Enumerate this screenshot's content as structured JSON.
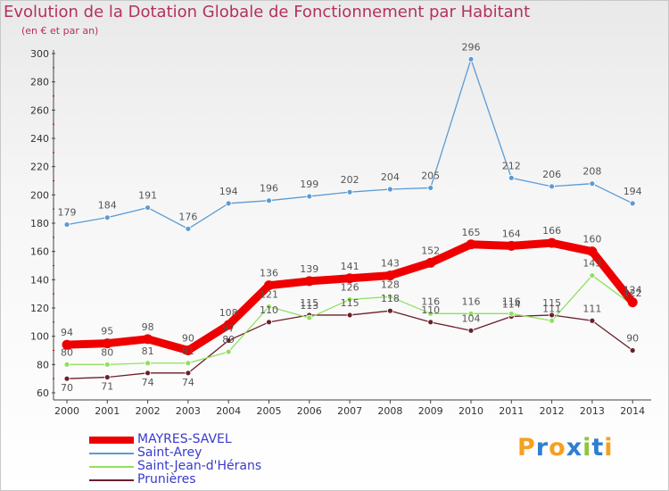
{
  "chart_data": {
    "type": "line",
    "title": "Evolution de la Dotation Globale de Fonctionnement par Habitant",
    "subtitle": "(en € et par an)",
    "xlabel": "",
    "ylabel": "",
    "x": [
      "2000",
      "2001",
      "2002",
      "2003",
      "2004",
      "2005",
      "2006",
      "2007",
      "2008",
      "2009",
      "2010",
      "2011",
      "2012",
      "2013",
      "2014"
    ],
    "ylim": [
      60,
      300
    ],
    "yticks": [
      60,
      80,
      100,
      120,
      140,
      160,
      180,
      200,
      220,
      240,
      260,
      280,
      300
    ],
    "grid": false,
    "legend_position": "bottom-left",
    "series": [
      {
        "name": "MAYRES-SAVEL",
        "color": "#ee0000",
        "values": [
          94,
          95,
          98,
          90,
          108,
          136,
          139,
          141,
          143,
          152,
          165,
          164,
          166,
          160,
          124
        ]
      },
      {
        "name": "Saint-Arey",
        "color": "#5b9bd5",
        "values": [
          179,
          184,
          191,
          176,
          194,
          196,
          199,
          202,
          204,
          205,
          296,
          212,
          206,
          208,
          194
        ]
      },
      {
        "name": "Saint-Jean-d'Hérans",
        "color": "#90e060",
        "values": [
          80,
          80,
          81,
          81,
          89,
          121,
          113,
          126,
          128,
          116,
          116,
          116,
          111,
          143,
          122
        ]
      },
      {
        "name": "Prunières",
        "color": "#6b1f2a",
        "values": [
          70,
          71,
          74,
          74,
          97,
          110,
          115,
          115,
          118,
          110,
          104,
          114,
          115,
          111,
          90
        ]
      }
    ]
  },
  "logo": {
    "text": "Proxiti",
    "letters": [
      "P",
      "r",
      "o",
      "x",
      "i",
      "t",
      "i"
    ],
    "colors": [
      "#f5a020",
      "#2e7fd0",
      "#f5a020",
      "#2e7fd0",
      "#8cc63f",
      "#2e7fd0",
      "#f5a020"
    ]
  }
}
